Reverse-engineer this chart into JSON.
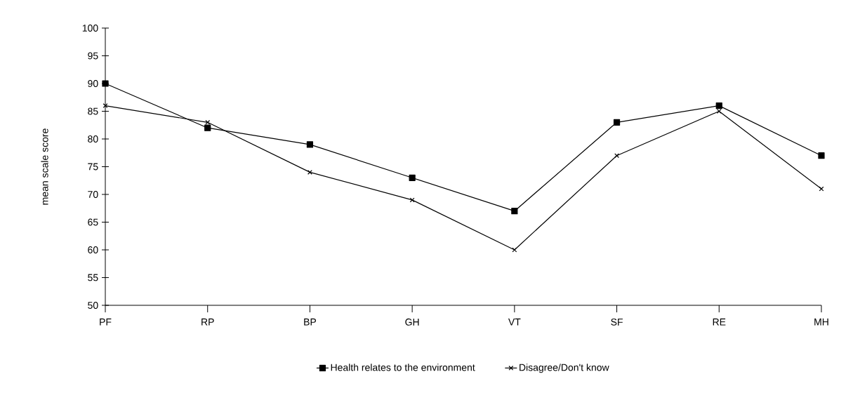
{
  "chart_data": {
    "type": "line",
    "ylabel": "mean scale score",
    "categories": [
      "PF",
      "RP",
      "BP",
      "GH",
      "VT",
      "SF",
      "RE",
      "MH"
    ],
    "series": [
      {
        "name": "Health relates to the environment",
        "color": "#000000",
        "marker": "square",
        "values": [
          90,
          82,
          79,
          73,
          67,
          83,
          86,
          77
        ]
      },
      {
        "name": "Disagree/Don't know",
        "color": "#000000",
        "marker": "cross",
        "values": [
          86,
          83,
          74,
          69,
          60,
          77,
          85,
          71
        ]
      }
    ],
    "ylim": [
      50,
      100
    ],
    "yticks": [
      50,
      55,
      60,
      65,
      70,
      75,
      80,
      85,
      90,
      95,
      100
    ],
    "grid": false,
    "legend": "bottom",
    "line_style": "solid"
  }
}
